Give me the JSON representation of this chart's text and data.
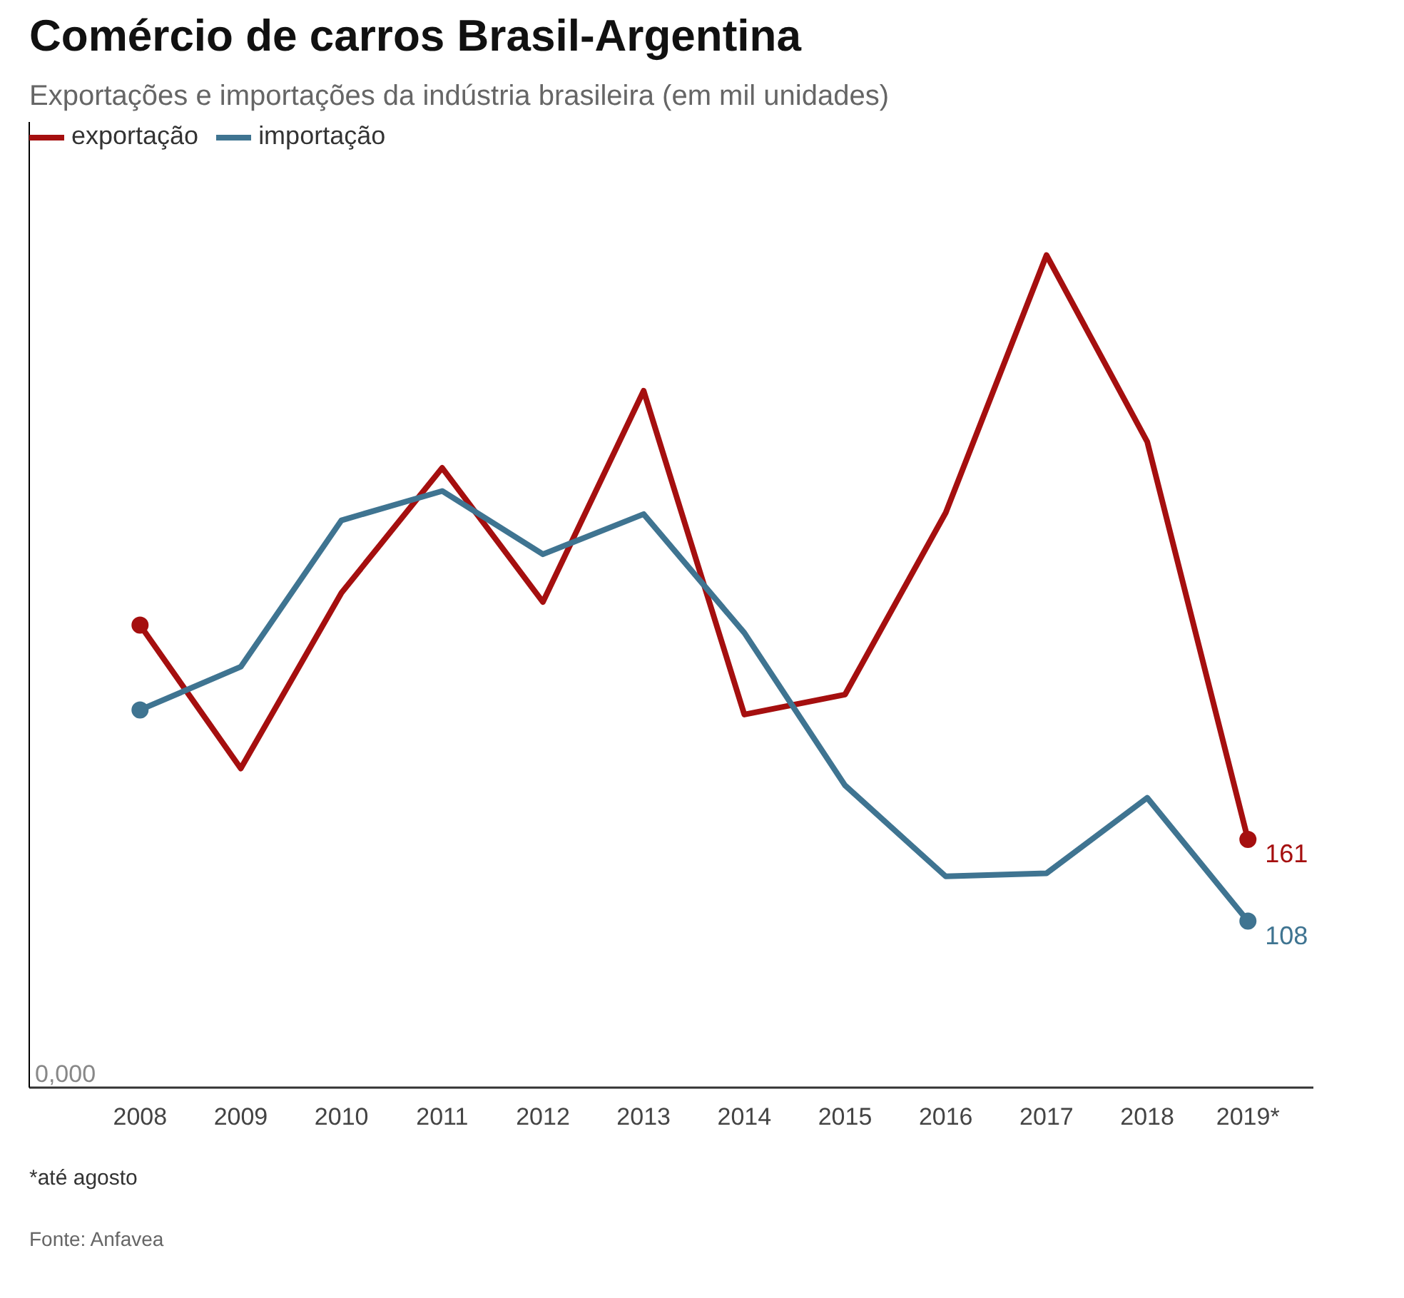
{
  "chart_data": {
    "type": "line",
    "title": "Comércio de carros Brasil-Argentina",
    "subtitle": "Exportações e importações da indústria brasileira (em mil unidades)",
    "categories": [
      "2008",
      "2009",
      "2010",
      "2011",
      "2012",
      "2013",
      "2014",
      "2015",
      "2016",
      "2017",
      "2018",
      "2019*"
    ],
    "series": [
      {
        "name": "exportação",
        "color": "#a50f0f",
        "values": [
          300,
          207,
          321,
          402,
          315,
          452,
          242,
          255,
          373,
          540,
          419,
          161
        ],
        "value_labels": [
          null,
          null,
          null,
          null,
          null,
          null,
          null,
          null,
          null,
          null,
          null,
          "161"
        ]
      },
      {
        "name": "importação",
        "color": "#3f7491",
        "values": [
          245,
          273,
          368,
          387,
          346,
          372,
          295,
          196,
          137,
          139,
          188,
          108
        ],
        "value_labels": [
          null,
          null,
          null,
          null,
          null,
          null,
          null,
          null,
          null,
          null,
          null,
          "108"
        ]
      }
    ],
    "grid": false,
    "legend": "top left",
    "line_style": "solid",
    "annotations": [
      "0,000",
      "*até agosto",
      "Fonte: Anfavea"
    ]
  }
}
